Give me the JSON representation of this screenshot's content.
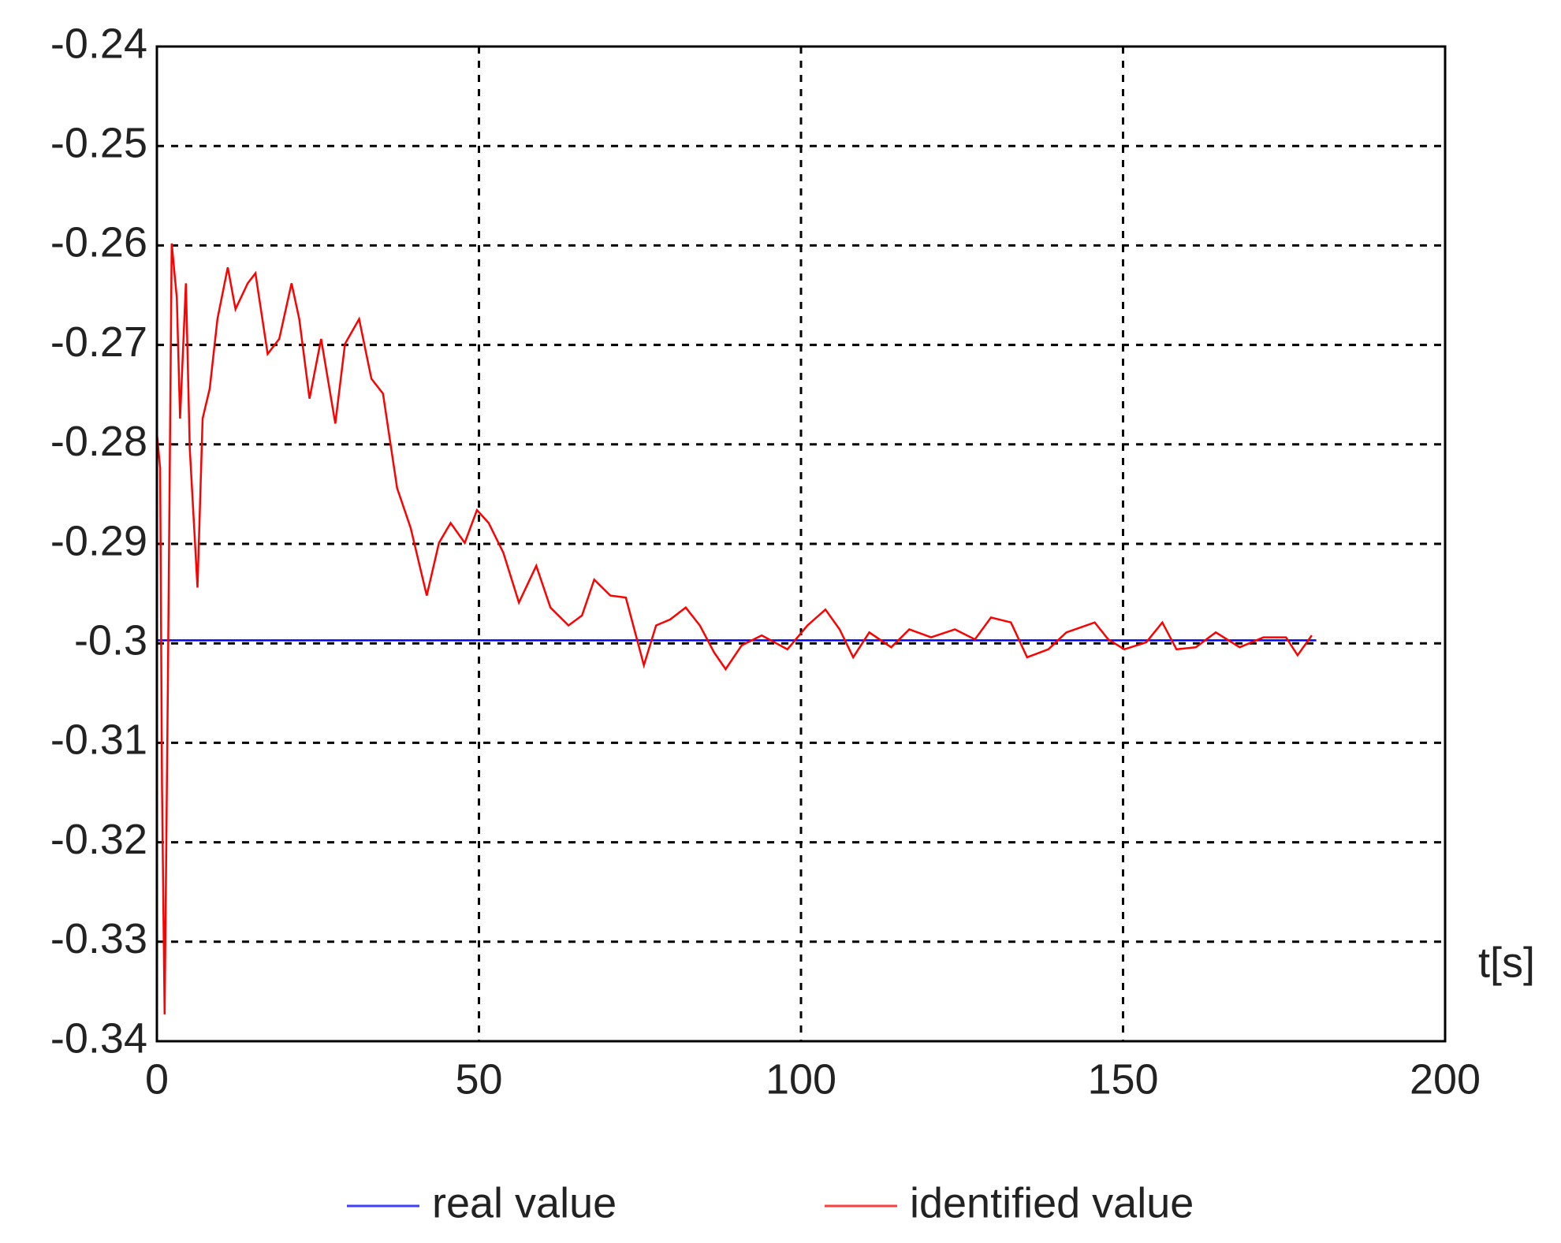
{
  "chart_data": {
    "type": "line",
    "annotation": "t[s]",
    "xlim": [
      0,
      200
    ],
    "xticks": [
      0,
      50,
      100,
      150,
      200
    ],
    "ylim": [
      -0.34,
      -0.24
    ],
    "yticks": [
      -0.34,
      -0.33,
      -0.32,
      -0.31,
      -0.3,
      -0.29,
      -0.28,
      -0.27,
      -0.26,
      -0.25,
      -0.24
    ],
    "grid": true,
    "legend": "bottom",
    "series": [
      {
        "name": "real value",
        "color": "#0000ff",
        "x": [
          0,
          180
        ],
        "values": [
          -0.2997,
          -0.2997
        ]
      },
      {
        "name": "identified value",
        "color": "#ff0000",
        "x": [
          0,
          0.5,
          0.8,
          1.2,
          1.7,
          2.3,
          3.1,
          3.6,
          4.5,
          5.1,
          6.3,
          7.1,
          8.2,
          9.4,
          11.0,
          12.2,
          14.1,
          15.3,
          17.2,
          19.0,
          20.9,
          22.1,
          23.7,
          25.5,
          27.7,
          29.2,
          31.4,
          33.3,
          35.1,
          37.3,
          39.4,
          41.9,
          43.8,
          45.6,
          47.8,
          49.7,
          51.5,
          53.8,
          56.2,
          58.9,
          61.1,
          63.9,
          66.0,
          67.9,
          70.4,
          72.8,
          75.6,
          77.5,
          79.7,
          82.1,
          84.3,
          86.5,
          88.3,
          90.8,
          93.9,
          97.9,
          101.0,
          103.8,
          106.0,
          108.1,
          110.6,
          114.0,
          116.8,
          120.2,
          123.9,
          127.0,
          129.5,
          132.6,
          135.1,
          138.4,
          141.2,
          145.6,
          147.7,
          150.2,
          153.6,
          156.1,
          158.3,
          161.3,
          164.4,
          168.1,
          171.8,
          175.3,
          177.1,
          179.3
        ],
        "values": [
          -0.2789,
          -0.2824,
          -0.3145,
          -0.3373,
          -0.3044,
          -0.2598,
          -0.2653,
          -0.2774,
          -0.2638,
          -0.2804,
          -0.2944,
          -0.2774,
          -0.2744,
          -0.2674,
          -0.2622,
          -0.2664,
          -0.2638,
          -0.2628,
          -0.2709,
          -0.2694,
          -0.2638,
          -0.2674,
          -0.2754,
          -0.2694,
          -0.2779,
          -0.2699,
          -0.2674,
          -0.2734,
          -0.2749,
          -0.2844,
          -0.2884,
          -0.2952,
          -0.2899,
          -0.2879,
          -0.2899,
          -0.2866,
          -0.2879,
          -0.2909,
          -0.2959,
          -0.2922,
          -0.2964,
          -0.2982,
          -0.2972,
          -0.2936,
          -0.2952,
          -0.2954,
          -0.3022,
          -0.2982,
          -0.2976,
          -0.2964,
          -0.2982,
          -0.3009,
          -0.3026,
          -0.3002,
          -0.2992,
          -0.3006,
          -0.2982,
          -0.2966,
          -0.2986,
          -0.3014,
          -0.2989,
          -0.3004,
          -0.2986,
          -0.2994,
          -0.2986,
          -0.2996,
          -0.2974,
          -0.2979,
          -0.3014,
          -0.3006,
          -0.2989,
          -0.2979,
          -0.2996,
          -0.3006,
          -0.2999,
          -0.2979,
          -0.3006,
          -0.3004,
          -0.2989,
          -0.3004,
          -0.2994,
          -0.2994,
          -0.3012,
          -0.2992
        ]
      }
    ]
  }
}
